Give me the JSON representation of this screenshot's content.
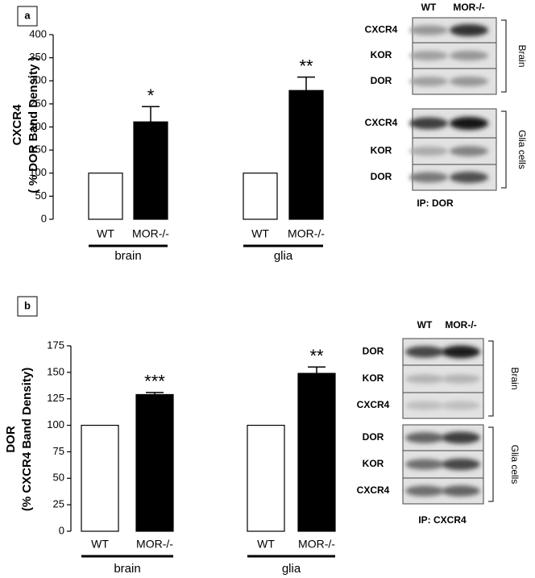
{
  "panel_labels": [
    "a",
    "b"
  ],
  "chart_data": [
    {
      "type": "bar",
      "ylabel": [
        "CXCR4",
        "( % DOR Band Density )"
      ],
      "categories": [
        "WT",
        "MOR-/-",
        "WT",
        "MOR-/-"
      ],
      "values": [
        100,
        211,
        100,
        279
      ],
      "errors": [
        null,
        33,
        null,
        29
      ],
      "annotations": [
        null,
        "*",
        null,
        "**"
      ],
      "colors": [
        "#ffffff",
        "#000000",
        "#ffffff",
        "#000000"
      ],
      "groups": [
        "brain",
        "glia"
      ],
      "ylim": [
        0,
        400
      ],
      "yticks": [
        0,
        50,
        100,
        150,
        200,
        250,
        300,
        350,
        400
      ]
    },
    {
      "type": "bar",
      "ylabel": [
        "DOR",
        "(% CXCR4 Band Density)"
      ],
      "categories": [
        "WT",
        "MOR-/-",
        "WT",
        "MOR-/-"
      ],
      "values": [
        100,
        129,
        100,
        149
      ],
      "errors": [
        null,
        2,
        null,
        6
      ],
      "annotations": [
        null,
        "***",
        null,
        "**"
      ],
      "colors": [
        "#ffffff",
        "#000000",
        "#ffffff",
        "#000000"
      ],
      "groups": [
        "brain",
        "glia"
      ],
      "ylim": [
        0,
        175
      ],
      "yticks": [
        0,
        25,
        50,
        75,
        100,
        125,
        150,
        175
      ]
    }
  ],
  "blots": [
    {
      "columns": [
        "WT",
        "MOR-/-"
      ],
      "sections": [
        {
          "label": "Brain",
          "rows": [
            "CXCR4",
            "KOR",
            "DOR"
          ]
        },
        {
          "label": "Glia cells",
          "rows": [
            "CXCR4",
            "KOR",
            "DOR"
          ]
        }
      ],
      "caption": "IP: DOR"
    },
    {
      "columns": [
        "WT",
        "MOR-/-"
      ],
      "sections": [
        {
          "label": "Brain",
          "rows": [
            "DOR",
            "KOR",
            "CXCR4"
          ]
        },
        {
          "label": "Glia cells",
          "rows": [
            "DOR",
            "KOR",
            "CXCR4"
          ]
        }
      ],
      "caption": "IP: CXCR4"
    }
  ]
}
